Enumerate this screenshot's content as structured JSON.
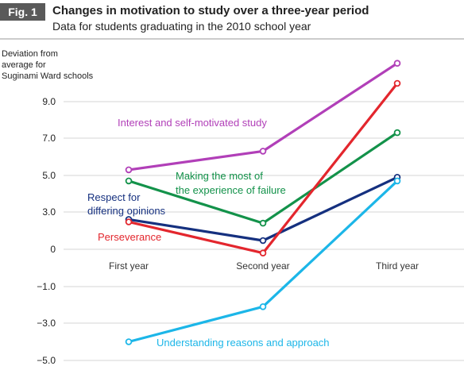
{
  "figure": {
    "badge": "Fig. 1",
    "title": "Changes in motivation to study over a three-year period",
    "subtitle": "Data for students graduating in the 2010 school year"
  },
  "chart_data": {
    "type": "line",
    "ylabel": [
      "Deviation from",
      "average for",
      "Suginami Ward schools"
    ],
    "categories": [
      "First year",
      "Second year",
      "Third year"
    ],
    "y_ticks": [
      9.0,
      7.0,
      5.0,
      3.0,
      0,
      -1.0,
      -3.0,
      -5.0
    ],
    "y_tick_labels": [
      "9.0",
      "7.0",
      "5.0",
      "3.0",
      "0",
      "−1.0",
      "−3.0",
      "−5.0"
    ],
    "grid": "horizontal",
    "series": [
      {
        "name": "Interest and self-motivated study",
        "color": "#b13fb8",
        "values": [
          5.3,
          6.3,
          11.1
        ]
      },
      {
        "name": "Making the most of the experience of failure",
        "color": "#13924a",
        "values": [
          4.7,
          2.1,
          7.3
        ]
      },
      {
        "name": "Respect for differing opinions",
        "color": "#15307f",
        "values": [
          2.4,
          0.7,
          4.9
        ]
      },
      {
        "name": "Perseverance",
        "color": "#e3262d",
        "values": [
          2.2,
          -0.1,
          10.0
        ]
      },
      {
        "name": "Understanding reasons and approach",
        "color": "#1cb6e8",
        "values": [
          -4.0,
          -2.1,
          4.7
        ]
      }
    ]
  }
}
